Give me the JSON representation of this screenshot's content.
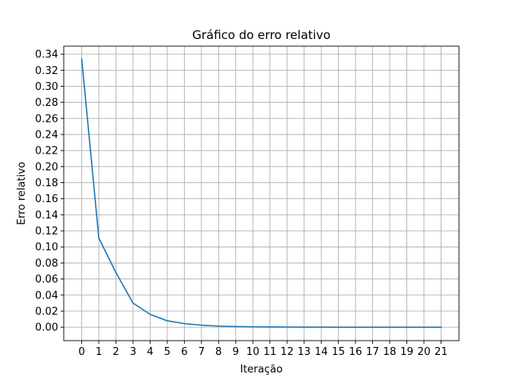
{
  "chart_data": {
    "type": "line",
    "title": "Gráfico do erro relativo",
    "xlabel": "Iteração",
    "ylabel": "Erro relativo",
    "xlim": [
      -1.05,
      22.05
    ],
    "ylim": [
      -0.0167,
      0.35
    ],
    "grid": true,
    "x_ticks": [
      0,
      1,
      2,
      3,
      4,
      5,
      6,
      7,
      8,
      9,
      10,
      11,
      12,
      13,
      14,
      15,
      16,
      17,
      18,
      19,
      20,
      21
    ],
    "y_ticks": [
      0.0,
      0.02,
      0.04,
      0.06,
      0.08,
      0.1,
      0.12,
      0.14,
      0.16,
      0.18,
      0.2,
      0.22,
      0.24,
      0.26,
      0.28,
      0.3,
      0.32,
      0.34
    ],
    "series": [
      {
        "color": "#1f77b4",
        "x": [
          0,
          1,
          2,
          3,
          4,
          5,
          6,
          7,
          8,
          9,
          10,
          11,
          12,
          13,
          14,
          15,
          16,
          17,
          18,
          19,
          20,
          21
        ],
        "y": [
          0.334,
          0.111,
          0.068,
          0.03,
          0.016,
          0.008,
          0.0045,
          0.0025,
          0.0014,
          0.0008,
          0.0005,
          0.0003,
          0.0002,
          0.0001,
          0.0001,
          0.0,
          0.0,
          0.0,
          0.0,
          0.0,
          0.0,
          0.0
        ]
      }
    ]
  }
}
